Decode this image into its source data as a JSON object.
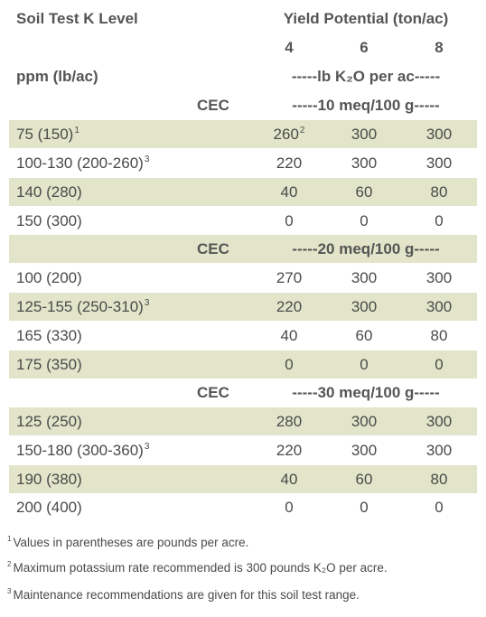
{
  "header": {
    "col1_title": "Soil Test K Level",
    "yield_title": "Yield Potential (ton/ac)",
    "yield_cols": [
      "4",
      "6",
      "8"
    ],
    "units_left": "ppm (lb/ac)",
    "units_right": "-----lb K₂O per ac-----"
  },
  "cec_label": "CEC",
  "groups": [
    {
      "cec_value": "-----10 meq/100 g-----",
      "rows": [
        {
          "level": "75 (150)",
          "level_sup": "1",
          "v4": "260",
          "v4_sup": "2",
          "v6": "300",
          "v8": "300"
        },
        {
          "level": "100-130 (200-260)",
          "level_sup": "3",
          "v4": "220",
          "v6": "300",
          "v8": "300"
        },
        {
          "level": "140 (280)",
          "v4": "40",
          "v6": "60",
          "v8": "80"
        },
        {
          "level": "150 (300)",
          "v4": "0",
          "v6": "0",
          "v8": "0"
        }
      ]
    },
    {
      "cec_value": "-----20 meq/100 g-----",
      "rows": [
        {
          "level": "100 (200)",
          "v4": "270",
          "v6": "300",
          "v8": "300"
        },
        {
          "level": "125-155 (250-310)",
          "level_sup": "3",
          "v4": "220",
          "v6": "300",
          "v8": "300"
        },
        {
          "level": "165 (330)",
          "v4": "40",
          "v6": "60",
          "v8": "80"
        },
        {
          "level": "175 (350)",
          "v4": "0",
          "v6": "0",
          "v8": "0"
        }
      ]
    },
    {
      "cec_value": "-----30 meq/100 g-----",
      "rows": [
        {
          "level": "125 (250)",
          "v4": "280",
          "v6": "300",
          "v8": "300"
        },
        {
          "level": "150-180 (300-360)",
          "level_sup": "3",
          "v4": "220",
          "v6": "300",
          "v8": "300"
        },
        {
          "level": "190 (380)",
          "v4": "40",
          "v6": "60",
          "v8": "80"
        },
        {
          "level": "200 (400)",
          "v4": "0",
          "v6": "0",
          "v8": "0"
        }
      ]
    }
  ],
  "footnotes": [
    {
      "mark": "1",
      "text": "Values in parentheses are pounds per acre."
    },
    {
      "mark": "2",
      "text": "Maximum potassium rate recommended is 300 pounds K₂O per acre."
    },
    {
      "mark": "3",
      "text": "Maintenance recommendations are given for this soil test range."
    }
  ],
  "colors": {
    "band": "#e2e5c9",
    "text": "#4a4a4a"
  }
}
